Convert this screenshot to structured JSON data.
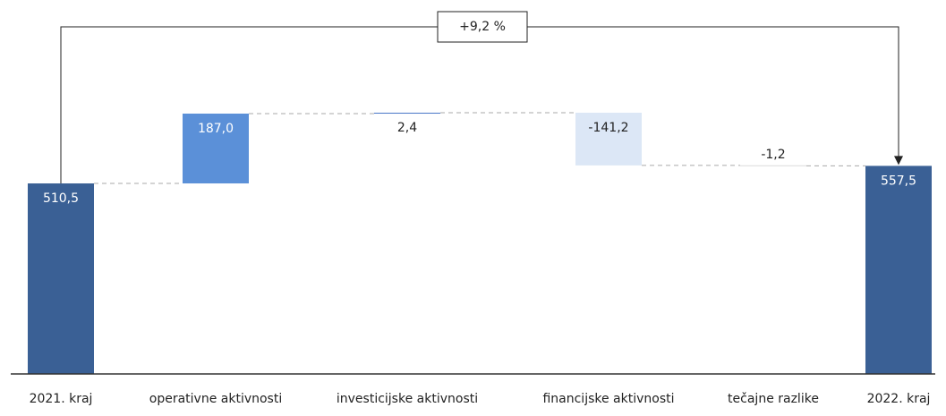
{
  "chart_data": {
    "type": "waterfall",
    "categories": [
      "2021. kraj",
      "operativne aktivnosti",
      "investicijske aktivnosti",
      "financijske aktivnosti",
      "tečajne razlike",
      "2022. kraj"
    ],
    "values": [
      510.5,
      187.0,
      2.4,
      -141.2,
      -1.2,
      557.5
    ],
    "value_labels": [
      "510,5",
      "187,0",
      "2,4",
      "-141,2",
      "-1,2",
      "557,5"
    ],
    "totals": [
      true,
      false,
      false,
      false,
      false,
      true
    ],
    "colors": [
      "#3a6095",
      "#5b90d8",
      "#4a78c8",
      "#dce7f6",
      "#b8b8b8",
      "#3a6095"
    ],
    "annotation": "+9,2 %"
  }
}
